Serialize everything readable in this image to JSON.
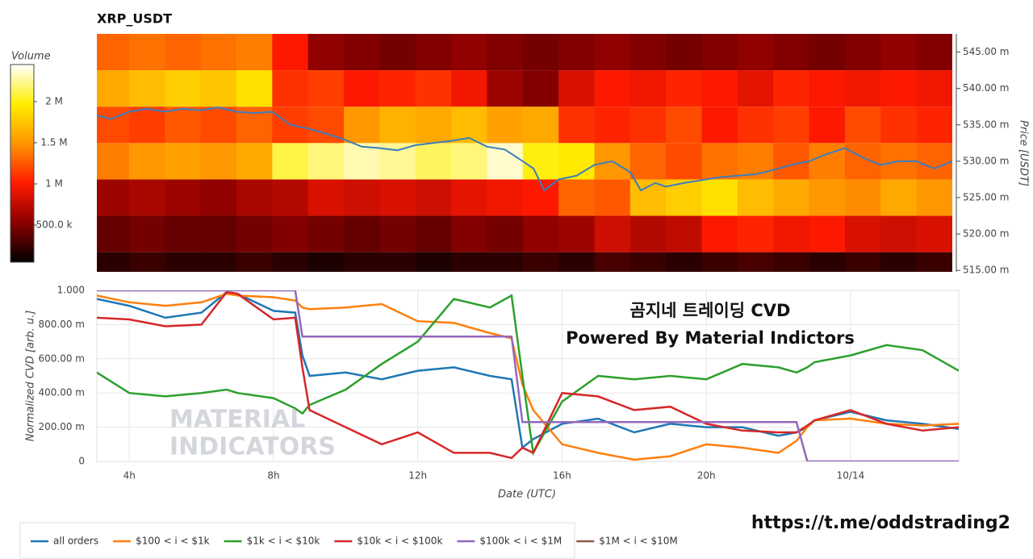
{
  "chart_data": [
    {
      "type": "heatmap",
      "title": "XRP_USDT",
      "colorbar_title": "Volume",
      "y_label": "Price [USDT]",
      "xlim": [
        3.1,
        27
      ],
      "ylim": [
        0.5148,
        0.5475
      ],
      "yticks": [
        {
          "value": 0.515,
          "label": "515.00 m"
        },
        {
          "value": 0.52,
          "label": "520.00 m"
        },
        {
          "value": 0.525,
          "label": "525.00 m"
        },
        {
          "value": 0.53,
          "label": "530.00 m"
        },
        {
          "value": 0.535,
          "label": "535.00 m"
        },
        {
          "value": 0.54,
          "label": "540.00 m"
        },
        {
          "value": 0.545,
          "label": "545.00 m"
        }
      ],
      "x_bins": [
        3,
        4,
        5,
        6,
        7,
        8,
        9,
        10,
        11,
        12,
        13,
        14,
        15,
        16,
        17,
        18,
        19,
        20,
        21,
        22,
        23,
        24,
        25,
        26,
        27
      ],
      "y_bins": [
        0.5125,
        0.5175,
        0.5225,
        0.5275,
        0.5325,
        0.5375,
        0.5425,
        0.5475
      ],
      "z": [
        [
          200000,
          250000,
          200000,
          200000,
          250000,
          200000,
          150000,
          200000,
          200000,
          150000,
          200000,
          200000,
          250000,
          200000,
          300000,
          250000,
          200000,
          250000,
          300000,
          250000,
          200000,
          250000,
          200000,
          250000
        ],
        [
          400000,
          450000,
          400000,
          400000,
          450000,
          500000,
          450000,
          400000,
          450000,
          400000,
          500000,
          450000,
          550000,
          600000,
          800000,
          700000,
          750000,
          1000000,
          1050000,
          950000,
          1000000,
          850000,
          800000,
          850000
        ],
        [
          600000,
          650000,
          600000,
          550000,
          650000,
          700000,
          850000,
          800000,
          850000,
          800000,
          900000,
          950000,
          1000000,
          1300000,
          1250000,
          1700000,
          1800000,
          1900000,
          1700000,
          1600000,
          1500000,
          1450000,
          1600000,
          1500000
        ],
        [
          1400000,
          1500000,
          1550000,
          1500000,
          1600000,
          2100000,
          2200000,
          2300000,
          2250000,
          2150000,
          2200000,
          2350000,
          2000000,
          1950000,
          1500000,
          1300000,
          1200000,
          1350000,
          1400000,
          1250000,
          1400000,
          1300000,
          1350000,
          1300000
        ],
        [
          1200000,
          1150000,
          1250000,
          1200000,
          1300000,
          1150000,
          1200000,
          1500000,
          1650000,
          1600000,
          1700000,
          1550000,
          1600000,
          1100000,
          1050000,
          1100000,
          1200000,
          1000000,
          1100000,
          1150000,
          1000000,
          1200000,
          1100000,
          1050000
        ],
        [
          1600000,
          1700000,
          1800000,
          1750000,
          1900000,
          1100000,
          1150000,
          1000000,
          1050000,
          1100000,
          950000,
          600000,
          500000,
          850000,
          1000000,
          950000,
          1050000,
          1000000,
          900000,
          1050000,
          1000000,
          950000,
          1000000,
          950000
        ],
        [
          1300000,
          1350000,
          1300000,
          1350000,
          1400000,
          1000000,
          550000,
          500000,
          450000,
          500000,
          550000,
          500000,
          450000,
          500000,
          550000,
          500000,
          450000,
          500000,
          550000,
          500000,
          450000,
          500000,
          550000,
          500000
        ]
      ],
      "zlim": [
        50000,
        2450000
      ],
      "zticks": [
        {
          "value": 500000,
          "label": "500.0 k"
        },
        {
          "value": 1000000,
          "label": "1 M"
        },
        {
          "value": 1500000,
          "label": "1.5 M"
        },
        {
          "value": 2000000,
          "label": "2 M"
        }
      ],
      "colorscale": [
        "#000000",
        "#8b0000",
        "#ff1a00",
        "#ff9500",
        "#ffee00",
        "#ffffff"
      ],
      "series": [
        {
          "color": "#3b7dbf",
          "x": [
            3.1,
            3.5,
            4,
            4.5,
            5,
            5.5,
            6,
            6.5,
            7,
            7.5,
            8,
            8.5,
            9,
            9.5,
            10,
            10.5,
            11,
            11.5,
            12,
            12.5,
            13,
            13.5,
            14,
            14.5,
            15,
            15.3,
            15.6,
            16,
            16.5,
            17,
            17.5,
            18,
            18.3,
            18.7,
            19,
            19.5,
            20,
            20.5,
            21,
            21.5,
            22,
            22.5,
            23,
            23.5,
            24,
            24.5,
            25,
            25.5,
            26,
            26.5,
            27
          ],
          "values": [
            0.5363,
            0.5358,
            0.5368,
            0.5372,
            0.5368,
            0.5372,
            0.537,
            0.5374,
            0.5368,
            0.5366,
            0.5368,
            0.535,
            0.5345,
            0.5338,
            0.533,
            0.532,
            0.5318,
            0.5315,
            0.5322,
            0.5325,
            0.5328,
            0.5332,
            0.532,
            0.5316,
            0.53,
            0.529,
            0.526,
            0.5275,
            0.528,
            0.5295,
            0.53,
            0.5285,
            0.526,
            0.527,
            0.5265,
            0.527,
            0.5274,
            0.5278,
            0.528,
            0.5282,
            0.5288,
            0.5295,
            0.53,
            0.531,
            0.5318,
            0.5305,
            0.5295,
            0.53,
            0.53,
            0.529,
            0.53
          ]
        }
      ]
    },
    {
      "type": "line",
      "x_label": "Date (UTC)",
      "y_label": "Normalized CVD [arb. u.]",
      "xlim": [
        3.1,
        27
      ],
      "ylim": [
        0,
        1
      ],
      "xticks": [
        {
          "value": 4,
          "label": "4h"
        },
        {
          "value": 8,
          "label": "8h"
        },
        {
          "value": 12,
          "label": "12h"
        },
        {
          "value": 16,
          "label": "16h"
        },
        {
          "value": 20,
          "label": "20h"
        },
        {
          "value": 24,
          "label": "10/14"
        }
      ],
      "yticks": [
        0,
        {
          "value": 0.2,
          "label": "200.00 m"
        },
        {
          "value": 0.4,
          "label": "400.00 m"
        },
        {
          "value": 0.6,
          "label": "600.00 m"
        },
        {
          "value": 0.8,
          "label": "800.00 m"
        },
        {
          "value": 1,
          "label": "1.000"
        }
      ],
      "grid": true,
      "annotations": [
        "곰지네 트레이딩 CVD",
        "Powered By Material Indictors"
      ],
      "watermark": [
        "MATERIAL",
        "INDICATORS"
      ],
      "x": [
        3.1,
        4,
        5,
        6,
        6.7,
        7,
        8,
        8.6,
        8.8,
        9,
        10,
        11,
        12,
        13,
        14,
        14.6,
        14.9,
        15.2,
        16,
        17,
        18,
        19,
        20,
        21,
        22,
        22.5,
        22.8,
        23,
        24,
        25,
        26,
        27
      ],
      "series": [
        {
          "name": "all orders",
          "color": "#1f77b4",
          "values": [
            0.95,
            0.91,
            0.84,
            0.87,
            0.99,
            0.98,
            0.88,
            0.87,
            0.62,
            0.5,
            0.52,
            0.48,
            0.53,
            0.55,
            0.5,
            0.48,
            0.08,
            0.13,
            0.22,
            0.25,
            0.17,
            0.22,
            0.2,
            0.2,
            0.15,
            0.17,
            0.2,
            0.24,
            0.29,
            0.24,
            0.22,
            0.19
          ]
        },
        {
          "name": "$100 < i < $1k",
          "color": "#ff7f0e",
          "values": [
            0.97,
            0.93,
            0.91,
            0.93,
            0.98,
            0.97,
            0.96,
            0.94,
            0.9,
            0.89,
            0.9,
            0.92,
            0.82,
            0.81,
            0.75,
            0.72,
            0.45,
            0.3,
            0.1,
            0.05,
            0.01,
            0.03,
            0.1,
            0.08,
            0.05,
            0.12,
            0.2,
            0.24,
            0.25,
            0.22,
            0.21,
            0.22
          ]
        },
        {
          "name": "$1k < i < $10k",
          "color": "#2ca02c",
          "values": [
            0.52,
            0.4,
            0.38,
            0.4,
            0.42,
            0.4,
            0.37,
            0.31,
            0.28,
            0.33,
            0.42,
            0.57,
            0.7,
            0.95,
            0.9,
            0.97,
            0.5,
            0.05,
            0.35,
            0.5,
            0.48,
            0.5,
            0.48,
            0.57,
            0.55,
            0.52,
            0.55,
            0.58,
            0.62,
            0.68,
            0.65,
            0.53
          ]
        },
        {
          "name": "$10k < i < $100k",
          "color": "#d62728",
          "values": [
            0.84,
            0.83,
            0.79,
            0.8,
            0.99,
            0.98,
            0.83,
            0.84,
            0.55,
            0.3,
            0.2,
            0.1,
            0.17,
            0.05,
            0.05,
            0.02,
            0.08,
            0.05,
            0.4,
            0.38,
            0.3,
            0.32,
            0.22,
            0.18,
            0.17,
            0.17,
            0.21,
            0.24,
            0.3,
            0.22,
            0.18,
            0.2
          ]
        },
        {
          "name": "$100k < i < $1M",
          "color": "#9467bd",
          "values": [
            1,
            1,
            1,
            1,
            1,
            1,
            1,
            1,
            0.73,
            0.73,
            0.73,
            0.73,
            0.73,
            0.73,
            0.73,
            0.73,
            0.23,
            0.23,
            0.23,
            0.23,
            0.23,
            0.23,
            0.23,
            0.23,
            0.23,
            0.23,
            0,
            0,
            0,
            0,
            0,
            0
          ]
        },
        {
          "name": "$1M < i < $10M",
          "color": "#8c564b",
          "values": [
            null,
            null,
            null,
            null,
            null,
            null,
            null,
            null,
            null,
            null,
            null,
            null,
            null,
            null,
            null,
            null,
            null,
            null,
            null,
            null,
            null,
            null,
            null,
            null,
            null,
            null,
            null,
            null,
            null,
            null,
            null,
            null
          ]
        }
      ]
    }
  ],
  "footer": "https://t.me/oddstrading2"
}
